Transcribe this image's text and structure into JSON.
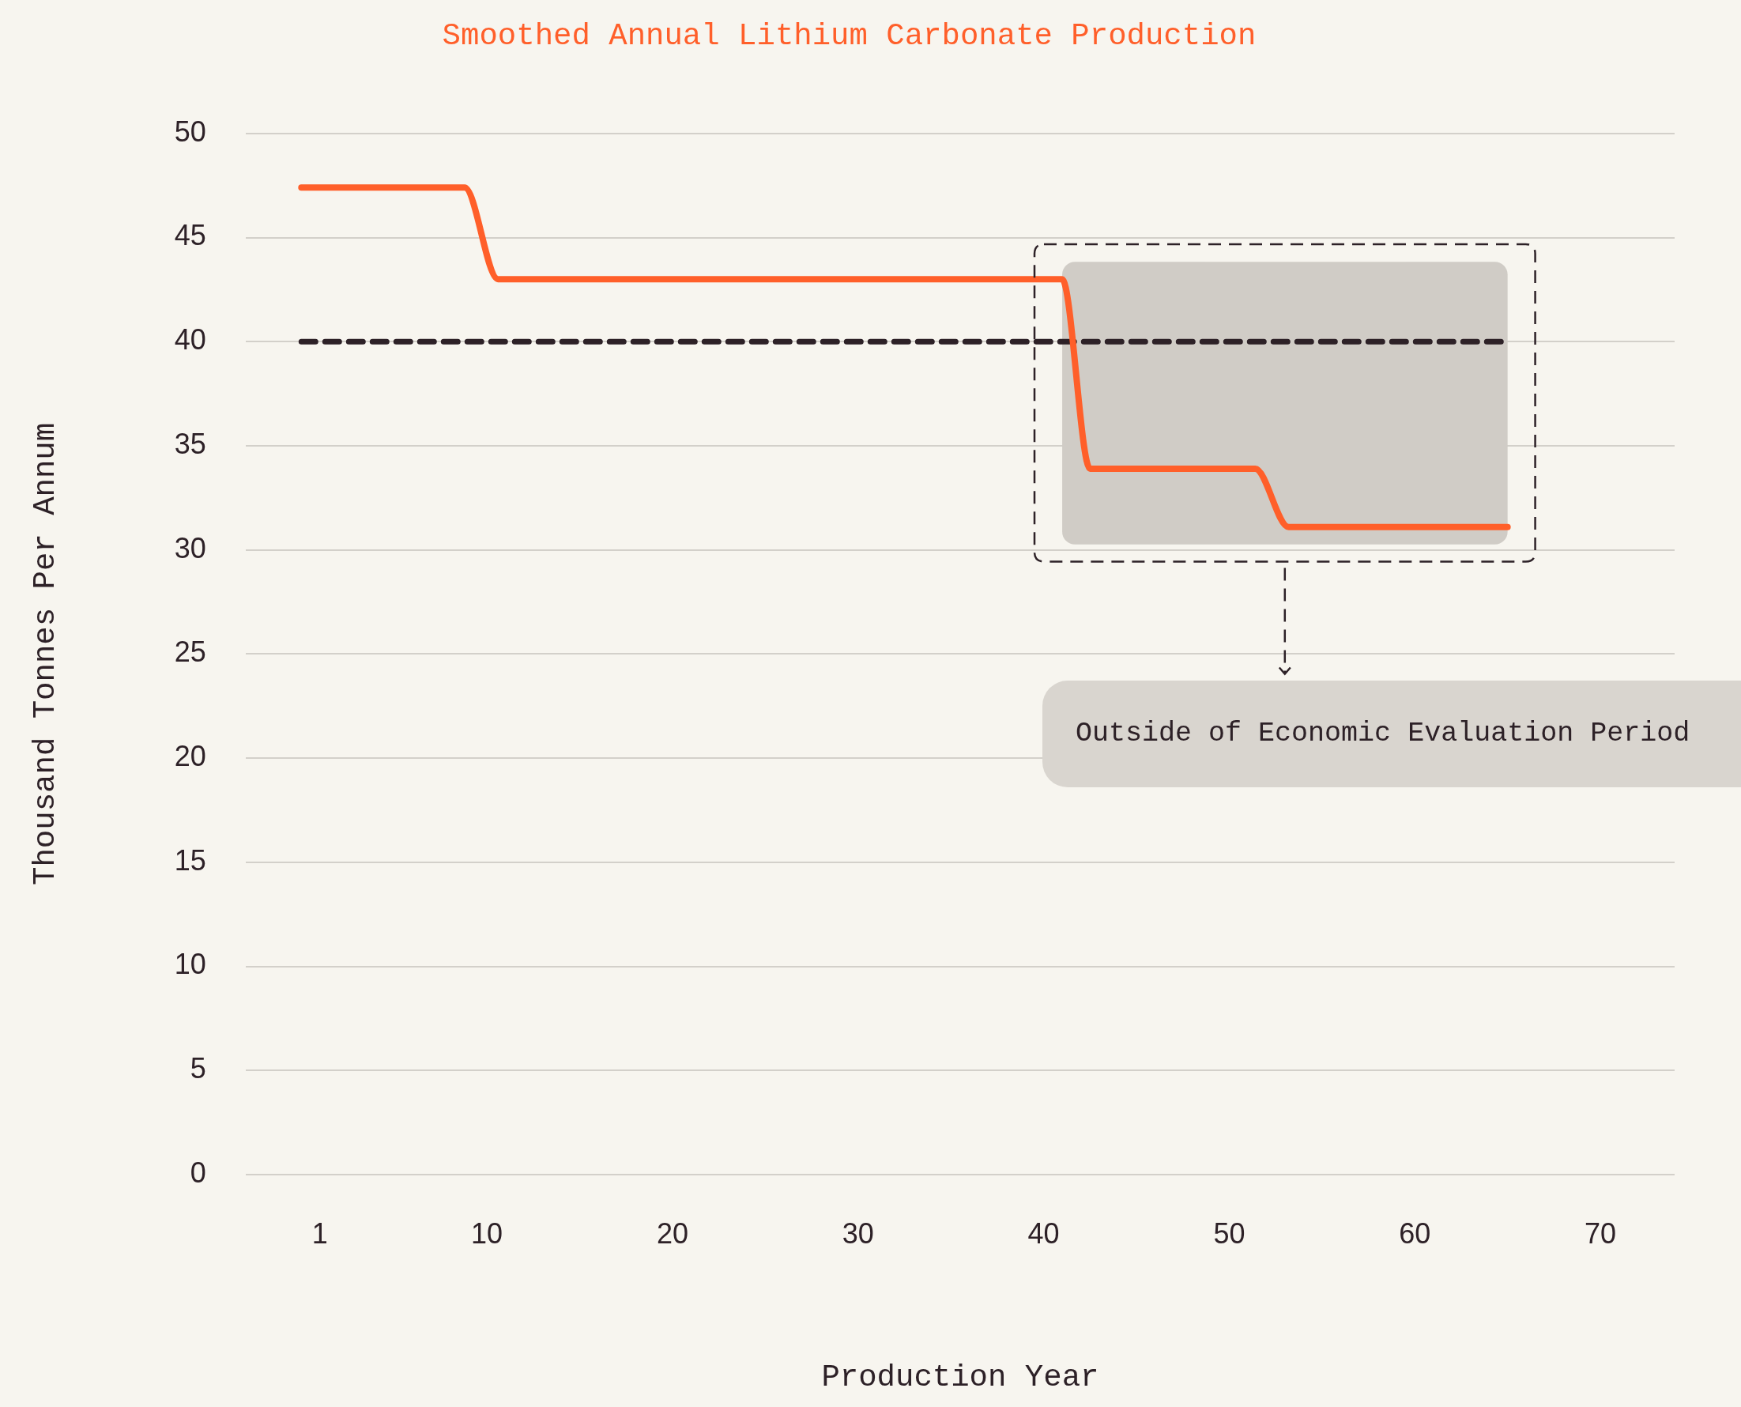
{
  "chart_data": {
    "type": "line",
    "title": "Smoothed Annual Lithium Carbonate Production",
    "xlabel": "Production Year",
    "ylabel": "Thousand Tonnes Per Annum",
    "series": [
      {
        "color": "#ff5f2a",
        "x": [
          0,
          8.8,
          10.6,
          41,
          42.5,
          51.4,
          53.2,
          65
        ],
        "values": [
          47.4,
          47.4,
          43,
          43,
          33.9,
          33.9,
          31.1,
          31.1
        ]
      },
      {
        "color": "#2d2127",
        "line_style": "dashed",
        "x": [
          0,
          65
        ],
        "values": [
          40,
          40
        ]
      }
    ],
    "bands": [
      {
        "axis": "x",
        "from": 41,
        "to": 65,
        "color": "#d0ccc6"
      }
    ],
    "annotations": [
      "Outside of Economic Evaluation Period"
    ],
    "xlim": [
      -3,
      74
    ],
    "xticks": [
      1,
      10,
      20,
      30,
      40,
      50,
      60,
      70
    ],
    "ylim": [
      0,
      50
    ],
    "yticks": [
      0,
      5,
      10,
      15,
      20,
      25,
      30,
      35,
      40,
      45,
      50
    ],
    "grid": "y",
    "legend": false,
    "marker": "none",
    "line_style": "solid"
  }
}
